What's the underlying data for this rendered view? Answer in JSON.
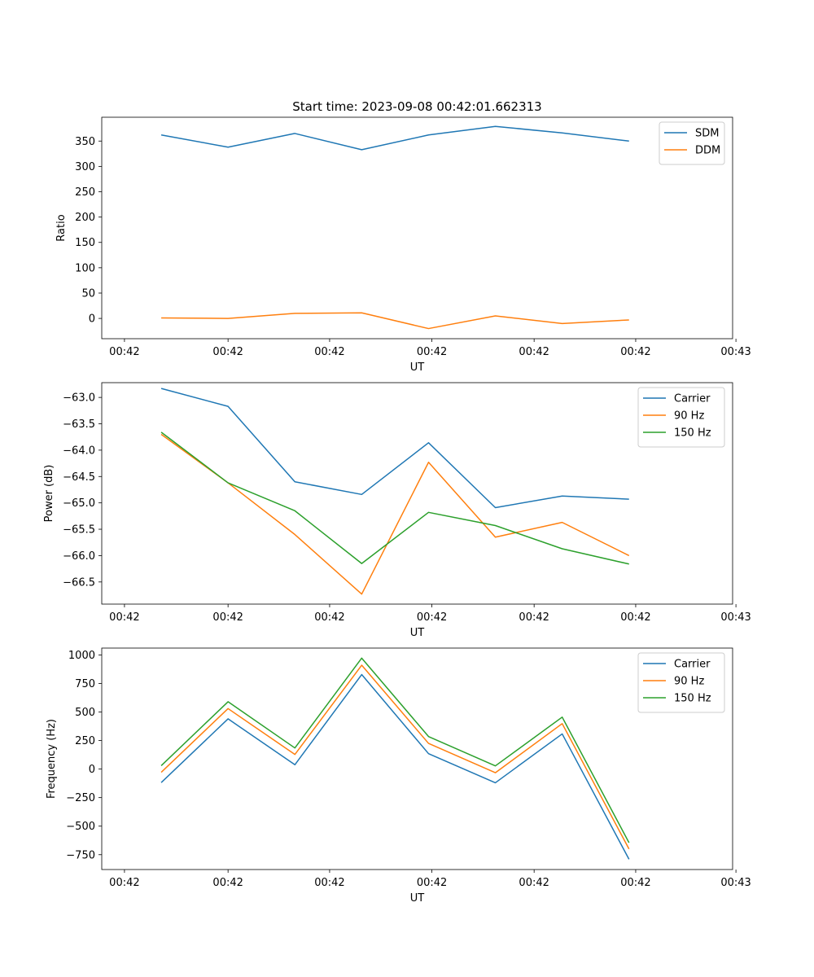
{
  "figure": {
    "title": "Start time: 2023-09-08 00:42:01.662313"
  },
  "chart_data": [
    {
      "type": "line",
      "title": "Start time: 2023-09-08 00:42:01.662313",
      "xlabel": "UT",
      "ylabel": "Ratio",
      "x": [
        1,
        2,
        3,
        4,
        5,
        6,
        7,
        8
      ],
      "xlim": [
        0.11,
        9.55
      ],
      "x_ticks": [
        0.45,
        2,
        3.52,
        5.05,
        6.58,
        8.1,
        9.6
      ],
      "x_tick_labels": [
        "00:42",
        "00:42",
        "00:42",
        "00:42",
        "00:42",
        "00:42",
        "00:43"
      ],
      "ylim": [
        -40,
        397
      ],
      "y_ticks": [
        0,
        50,
        100,
        150,
        200,
        250,
        300,
        350
      ],
      "y_tick_labels": [
        "0",
        "50",
        "100",
        "150",
        "200",
        "250",
        "300",
        "350"
      ],
      "legend_position": "top-right",
      "series": [
        {
          "name": "SDM",
          "color": "#1f77b4",
          "values": [
            362,
            338,
            365,
            333,
            362,
            379,
            366,
            350
          ]
        },
        {
          "name": "DDM",
          "color": "#ff7f0e",
          "values": [
            1,
            0,
            10,
            11,
            -20,
            5,
            -10,
            -3
          ]
        }
      ]
    },
    {
      "type": "line",
      "title": "",
      "xlabel": "UT",
      "ylabel": "Power (dB)",
      "x": [
        1,
        2,
        3,
        4,
        5,
        6,
        7,
        8
      ],
      "xlim": [
        0.11,
        9.55
      ],
      "x_ticks": [
        0.45,
        2,
        3.52,
        5.05,
        6.58,
        8.1,
        9.6
      ],
      "x_tick_labels": [
        "00:42",
        "00:42",
        "00:42",
        "00:42",
        "00:42",
        "00:42",
        "00:43"
      ],
      "ylim": [
        -66.92,
        -62.72
      ],
      "y_ticks": [
        -66.5,
        -66.0,
        -65.5,
        -65.0,
        -64.5,
        -64.0,
        -63.5,
        -63.0
      ],
      "y_tick_labels": [
        "−66.5",
        "−66.0",
        "−65.5",
        "−65.0",
        "−64.5",
        "−64.0",
        "−63.5",
        "−63.0"
      ],
      "legend_position": "top-right",
      "series": [
        {
          "name": "Carrier",
          "color": "#1f77b4",
          "values": [
            -62.83,
            -63.17,
            -64.6,
            -64.84,
            -63.86,
            -65.09,
            -64.87,
            -64.93
          ]
        },
        {
          "name": "90 Hz",
          "color": "#ff7f0e",
          "values": [
            -63.7,
            -64.62,
            -65.6,
            -66.73,
            -64.23,
            -65.65,
            -65.37,
            -66.0
          ]
        },
        {
          "name": "150 Hz",
          "color": "#2ca02c",
          "values": [
            -63.66,
            -64.62,
            -65.15,
            -66.15,
            -65.18,
            -65.43,
            -65.87,
            -66.16
          ]
        }
      ]
    },
    {
      "type": "line",
      "title": "",
      "xlabel": "UT",
      "ylabel": "Frequency (Hz)",
      "x": [
        1,
        2,
        3,
        4,
        5,
        6,
        7,
        8
      ],
      "xlim": [
        0.11,
        9.55
      ],
      "x_ticks": [
        0.45,
        2,
        3.52,
        5.05,
        6.58,
        8.1,
        9.6
      ],
      "x_tick_labels": [
        "00:42",
        "00:42",
        "00:42",
        "00:42",
        "00:42",
        "00:42",
        "00:43"
      ],
      "ylim": [
        -880,
        1060
      ],
      "y_ticks": [
        -750,
        -500,
        -250,
        0,
        250,
        500,
        750,
        1000
      ],
      "y_tick_labels": [
        "−750",
        "−500",
        "−250",
        "0",
        "250",
        "500",
        "750",
        "1000"
      ],
      "legend_position": "top-right",
      "series": [
        {
          "name": "Carrier",
          "color": "#1f77b4",
          "values": [
            -118,
            440,
            38,
            828,
            135,
            -120,
            308,
            -790
          ]
        },
        {
          "name": "90 Hz",
          "color": "#ff7f0e",
          "values": [
            -28,
            530,
            128,
            910,
            225,
            -32,
            398,
            -700
          ]
        },
        {
          "name": "150 Hz",
          "color": "#2ca02c",
          "values": [
            30,
            590,
            185,
            972,
            285,
            28,
            455,
            -645
          ]
        }
      ]
    }
  ]
}
